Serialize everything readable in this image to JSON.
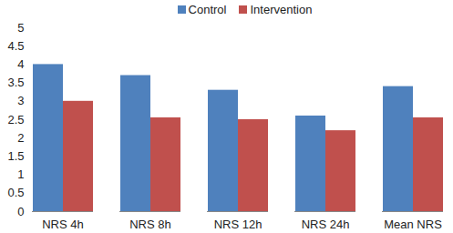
{
  "chart_data": {
    "type": "bar",
    "categories": [
      "NRS 4h",
      "NRS 8h",
      "NRS 12h",
      "NRS 24h",
      "Mean NRS"
    ],
    "series": [
      {
        "name": "Control",
        "color": "#4f81bd",
        "values": [
          4.0,
          3.7,
          3.3,
          2.6,
          3.4
        ]
      },
      {
        "name": "Intervention",
        "color": "#c0504d",
        "values": [
          3.0,
          2.55,
          2.5,
          2.2,
          2.55
        ]
      }
    ],
    "ylim": [
      0,
      5
    ],
    "yticks": [
      0,
      0.5,
      1,
      1.5,
      2,
      2.5,
      3,
      3.5,
      4,
      4.5,
      5
    ],
    "grid": false,
    "legend": "top"
  }
}
